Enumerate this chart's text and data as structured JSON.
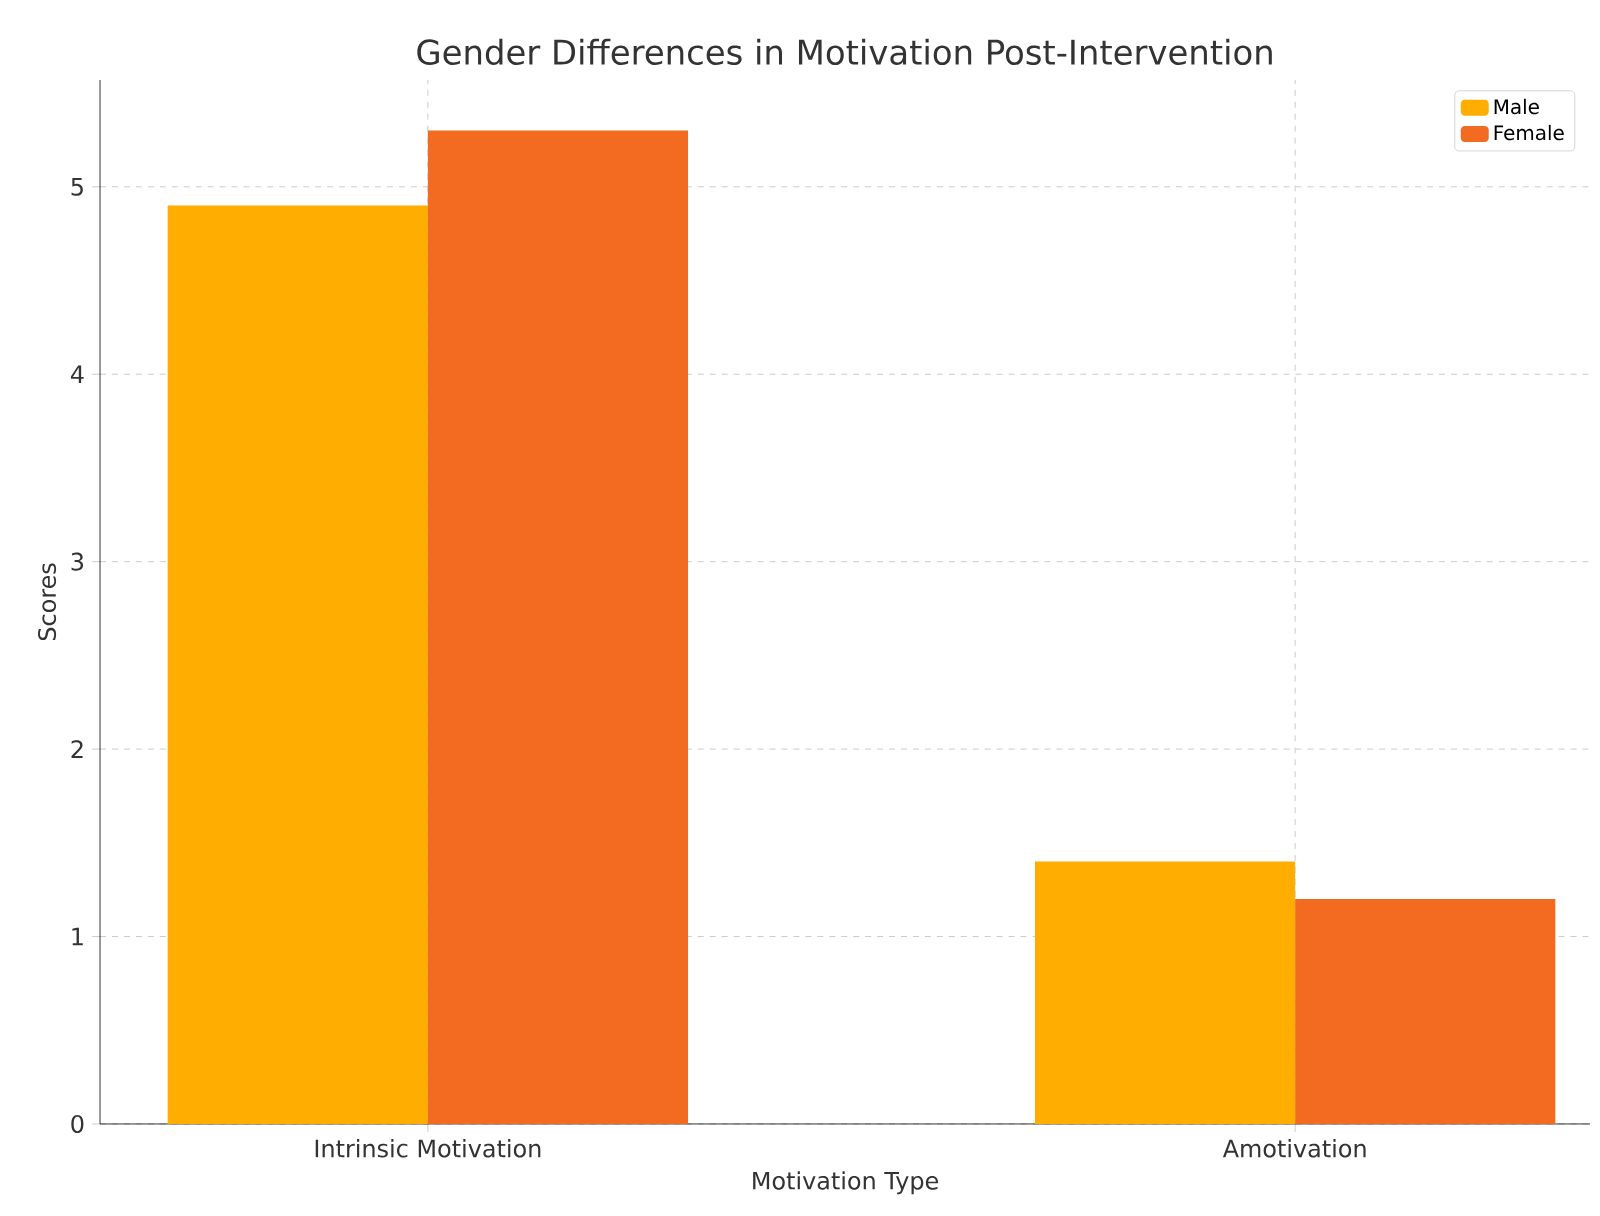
{
  "chart_data": {
    "type": "bar",
    "title": "Gender Differences in Motivation Post-Intervention",
    "xlabel": "Motivation Type",
    "ylabel": "Scores",
    "categories": [
      "Intrinsic Motivation",
      "Amotivation"
    ],
    "series": [
      {
        "name": "Male",
        "color": "#ffae00",
        "values": [
          4.9,
          1.4
        ]
      },
      {
        "name": "Female",
        "color": "#f26b21",
        "values": [
          5.3,
          1.2
        ]
      }
    ],
    "ylim": [
      0,
      5.57
    ],
    "yticks": [
      0,
      1,
      2,
      3,
      4,
      5
    ],
    "grid": true,
    "legend": "top right"
  }
}
